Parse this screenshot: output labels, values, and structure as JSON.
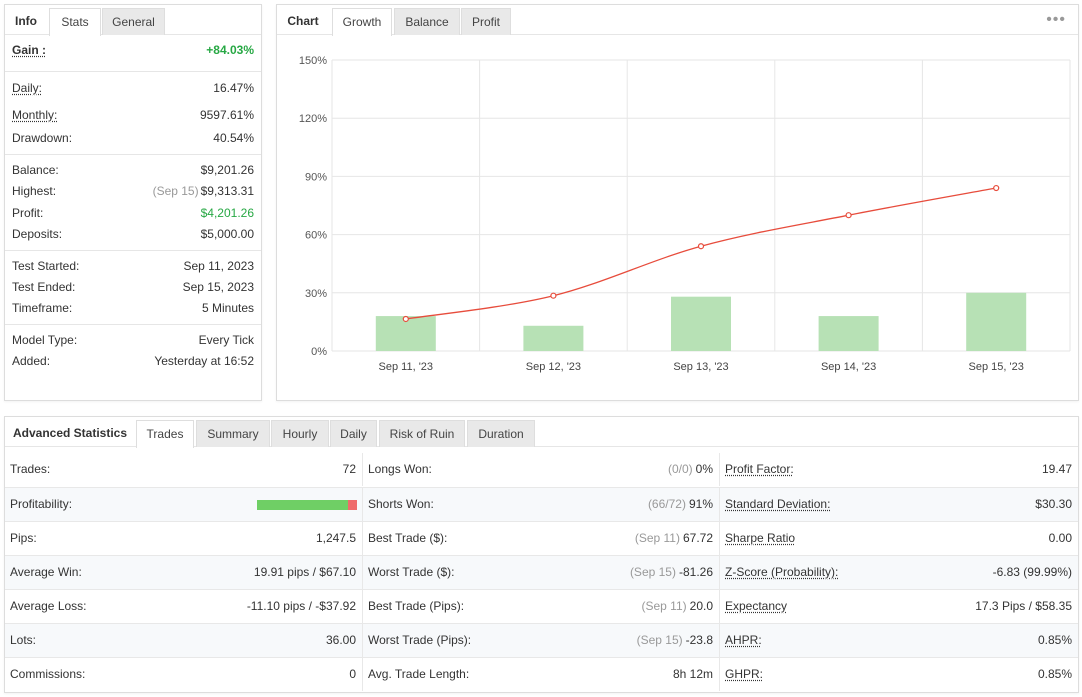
{
  "info_panel": {
    "tabs": [
      "Info",
      "Stats",
      "General"
    ],
    "gain": {
      "label": "Gain :",
      "value": "+84.03%"
    },
    "daily": {
      "label": "Daily:",
      "value": "16.47%"
    },
    "monthly": {
      "label": "Monthly:",
      "value": "9597.61%"
    },
    "drawdown": {
      "label": "Drawdown:",
      "value": "40.54%"
    },
    "balance": {
      "label": "Balance:",
      "value": "$9,201.26"
    },
    "highest": {
      "label": "Highest:",
      "date": "(Sep 15)",
      "value": "$9,313.31"
    },
    "profit": {
      "label": "Profit:",
      "value": "$4,201.26"
    },
    "deposits": {
      "label": "Deposits:",
      "value": "$5,000.00"
    },
    "test_started": {
      "label": "Test Started:",
      "value": "Sep 11, 2023"
    },
    "test_ended": {
      "label": "Test Ended:",
      "value": "Sep 15, 2023"
    },
    "timeframe": {
      "label": "Timeframe:",
      "value": "5 Minutes"
    },
    "model_type": {
      "label": "Model Type:",
      "value": "Every Tick"
    },
    "added": {
      "label": "Added:",
      "value": "Yesterday at 16:52"
    }
  },
  "chart_panel": {
    "tabs": [
      "Chart",
      "Growth",
      "Balance",
      "Profit"
    ],
    "menu_icon": "more-dots-icon"
  },
  "chart_data": {
    "type": "bar",
    "categories": [
      "Sep 11, '23",
      "Sep 12, '23",
      "Sep 13, '23",
      "Sep 14, '23",
      "Sep 15, '23"
    ],
    "series": [
      {
        "type": "bar",
        "values": [
          18,
          13,
          28,
          18,
          30
        ],
        "color": "#b7e1b5"
      },
      {
        "type": "line",
        "values": [
          16.5,
          28.5,
          54,
          70,
          84
        ],
        "color": "#e74c3c"
      }
    ],
    "yticks": [
      "150%",
      "120%",
      "90%",
      "60%",
      "30%",
      "0%"
    ],
    "ylim": [
      0,
      150
    ],
    "grid": true
  },
  "stats_panel": {
    "tabs": [
      "Advanced Statistics",
      "Trades",
      "Summary",
      "Hourly",
      "Daily",
      "Risk of Ruin",
      "Duration"
    ],
    "col1": [
      {
        "label": "Trades:",
        "value": "72"
      },
      {
        "label": "Profitability:",
        "value": "",
        "bar": {
          "green": 0.91,
          "red": 0.09
        }
      },
      {
        "label": "Pips:",
        "value": "1,247.5"
      },
      {
        "label": "Average Win:",
        "value": "19.91 pips / $67.10"
      },
      {
        "label": "Average Loss:",
        "value": "-11.10 pips / -$37.92"
      },
      {
        "label": "Lots:",
        "value": "36.00"
      },
      {
        "label": "Commissions:",
        "value": "0"
      }
    ],
    "col2": [
      {
        "label": "Longs Won:",
        "sub": "(0/0)",
        "value": "0%"
      },
      {
        "label": "Shorts Won:",
        "sub": "(66/72)",
        "value": "91%"
      },
      {
        "label": "Best Trade ($):",
        "sub": "(Sep 11)",
        "value": "67.72"
      },
      {
        "label": "Worst Trade ($):",
        "sub": "(Sep 15)",
        "value": "-81.26"
      },
      {
        "label": "Best Trade (Pips):",
        "sub": "(Sep 11)",
        "value": "20.0"
      },
      {
        "label": "Worst Trade (Pips):",
        "sub": "(Sep 15)",
        "value": "-23.8"
      },
      {
        "label": "Avg. Trade Length:",
        "sub": "",
        "value": "8h 12m"
      }
    ],
    "col3": [
      {
        "label": "Profit Factor:",
        "value": "19.47"
      },
      {
        "label": "Standard Deviation:",
        "value": "$30.30"
      },
      {
        "label": "Sharpe Ratio",
        "value": "0.00"
      },
      {
        "label": "Z-Score (Probability):",
        "value": "-6.83 (99.99%)"
      },
      {
        "label": "Expectancy",
        "value": "17.3 Pips / $58.35"
      },
      {
        "label": "AHPR:",
        "value": "0.85%"
      },
      {
        "label": "GHPR:",
        "value": "0.85%"
      }
    ]
  }
}
